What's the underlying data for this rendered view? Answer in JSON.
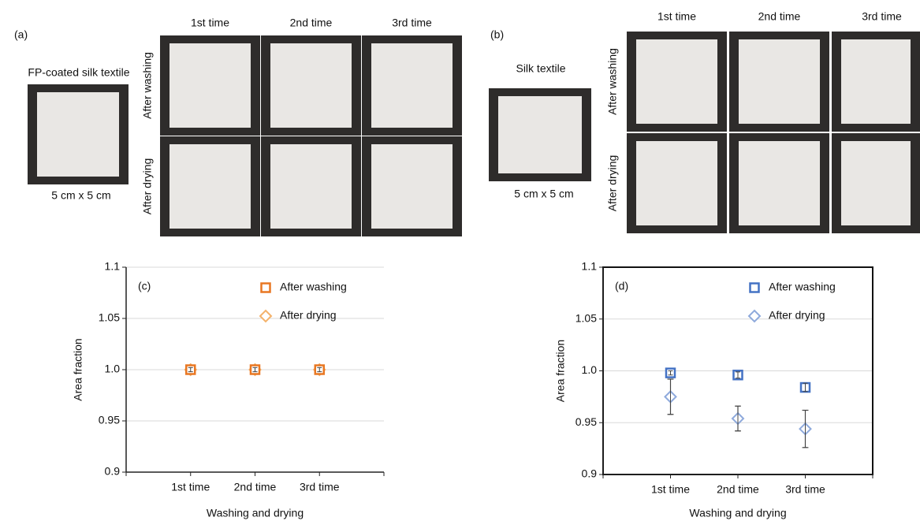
{
  "photo_panels": [
    {
      "label": "(a)",
      "sample": "FP-coated silk textile",
      "size": "5 cm x 5 cm",
      "columns": [
        "1st time",
        "2nd time",
        "3rd time"
      ],
      "rows": [
        "After washing",
        "After drying"
      ]
    },
    {
      "label": "(b)",
      "sample": "Silk textile",
      "size": "5 cm x 5 cm",
      "columns": [
        "1st time",
        "2nd time",
        "3rd time"
      ],
      "rows": [
        "After washing",
        "After drying"
      ]
    }
  ],
  "chart_data": [
    {
      "type": "scatter",
      "annotation": "(c)",
      "x_label": "Washing and drying",
      "y_label": "Area fraction",
      "categories": [
        "1st time",
        "2nd time",
        "3rd time"
      ],
      "series": [
        {
          "name": "After washing",
          "color": "#e87722",
          "marker": "square",
          "values": [
            1.0,
            1.0,
            1.0
          ],
          "errors": [
            0.002,
            0.002,
            0.002
          ]
        },
        {
          "name": "After drying",
          "color": "#f4b26b",
          "marker": "diamond",
          "values": [
            1.0,
            1.0,
            1.0
          ],
          "errors": [
            0.002,
            0.002,
            0.002
          ]
        }
      ],
      "ylim": [
        0.9,
        1.1
      ],
      "yticks": [
        0.9,
        0.95,
        {
          "value": 1.0,
          "label": "1.0"
        },
        1.05,
        1.1
      ],
      "grid": true,
      "legend": "upper right",
      "border": false
    },
    {
      "type": "scatter",
      "annotation": "(d)",
      "x_label": "Washing and drying",
      "y_label": "Area fraction",
      "categories": [
        "1st time",
        "2nd time",
        "3rd time"
      ],
      "series": [
        {
          "name": "After washing",
          "color": "#4472c4",
          "marker": "square",
          "values": [
            0.998,
            0.996,
            0.984
          ],
          "errors": [
            0.002,
            0.003,
            0.004
          ]
        },
        {
          "name": "After drying",
          "color": "#8faadc",
          "marker": "diamond",
          "values": [
            0.975,
            0.954,
            0.944
          ],
          "errors": [
            0.017,
            0.012,
            0.018
          ]
        }
      ],
      "ylim": [
        0.9,
        1.1
      ],
      "yticks": [
        0.9,
        0.95,
        {
          "value": 1.0,
          "label": "1.0"
        },
        1.05,
        1.1
      ],
      "grid": true,
      "legend": "upper right",
      "border": true
    }
  ]
}
